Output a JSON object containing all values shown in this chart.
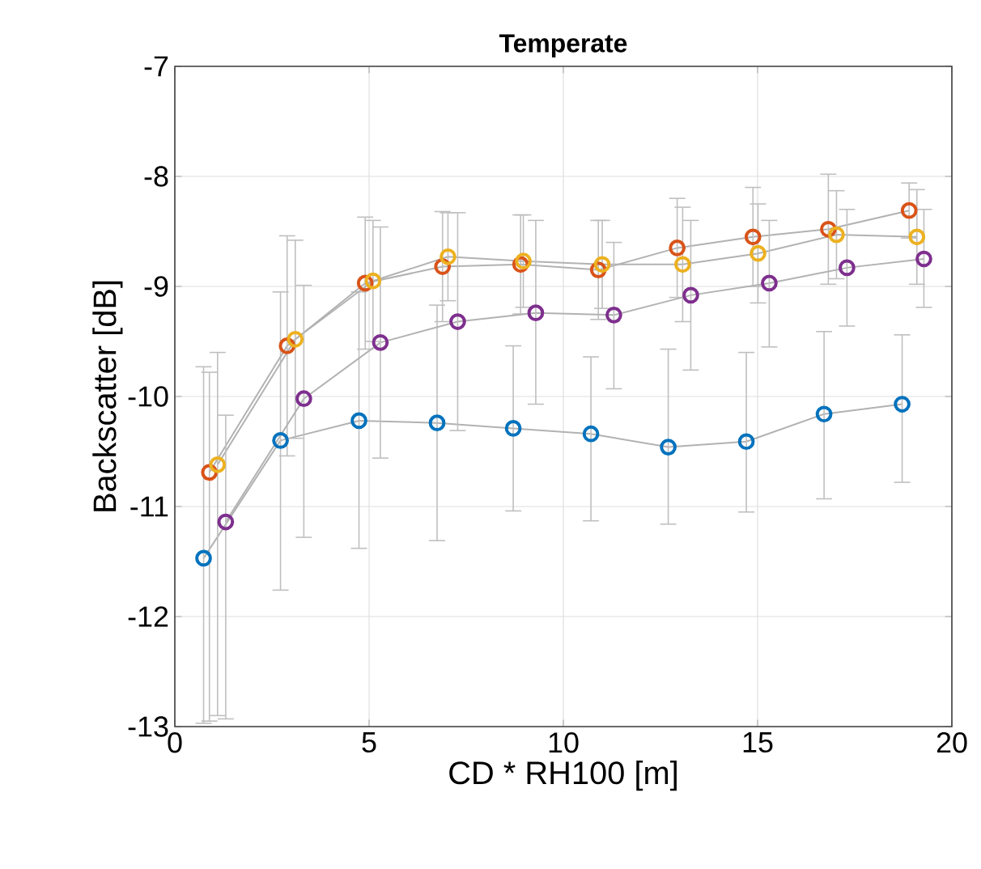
{
  "chart_data": {
    "type": "line",
    "title": "Temperate",
    "xlabel": "CD * RH100  [m]",
    "ylabel": "Backscatter  [dB]",
    "xlim": [
      0,
      20
    ],
    "ylim": [
      -13,
      -7
    ],
    "xticks": [
      0,
      5,
      10,
      15,
      20
    ],
    "yticks": [
      -13,
      -12,
      -11,
      -10,
      -9,
      -8,
      -7
    ],
    "grid": true,
    "marker": "circle",
    "line_style": "solid",
    "series": [
      {
        "color": "#0072bd",
        "x": [
          0.74,
          2.72,
          4.74,
          6.75,
          8.71,
          10.71,
          12.7,
          14.71,
          16.71,
          18.72
        ],
        "values": [
          -11.47,
          -10.4,
          -10.22,
          -10.24,
          -10.29,
          -10.34,
          -10.46,
          -10.41,
          -10.16,
          -10.07
        ],
        "errors": [
          [
            -12.97,
            -9.73
          ],
          [
            -11.76,
            -9.05
          ],
          [
            -11.38,
            -9.05
          ],
          [
            -11.31,
            -9.17
          ],
          [
            -11.04,
            -9.54
          ],
          [
            -11.13,
            -9.64
          ],
          [
            -11.16,
            -9.57
          ],
          [
            -11.05,
            -9.6
          ],
          [
            -10.93,
            -9.41
          ],
          [
            -10.78,
            -9.44
          ]
        ]
      },
      {
        "color": "#d95319",
        "x": [
          0.89,
          2.89,
          4.9,
          6.89,
          8.9,
          10.9,
          12.93,
          14.88,
          16.82,
          18.9
        ],
        "values": [
          -10.69,
          -9.54,
          -8.97,
          -8.82,
          -8.8,
          -8.85,
          -8.65,
          -8.55,
          -8.48,
          -8.31
        ],
        "errors": [
          [
            -12.95,
            -9.78
          ],
          1.0,
          0.6,
          0.5,
          0.45,
          0.45,
          0.45,
          0.45,
          0.5,
          0.25
        ]
      },
      {
        "color": "#edb120",
        "x": [
          1.1,
          3.1,
          5.1,
          7.03,
          8.97,
          11.0,
          13.07,
          15.01,
          17.03,
          19.1
        ],
        "values": [
          -10.62,
          -9.48,
          -8.95,
          -8.73,
          -8.77,
          -8.8,
          -8.8,
          -8.7,
          -8.53,
          -8.55
        ],
        "errors": [
          [
            -12.9,
            -9.6
          ],
          0.9,
          0.55,
          0.4,
          0.42,
          0.4,
          0.52,
          0.45,
          0.4,
          0.43
        ]
      },
      {
        "color": "#7e2f8e",
        "x": [
          1.31,
          3.32,
          5.29,
          7.28,
          9.29,
          11.3,
          13.28,
          15.3,
          17.3,
          19.28
        ],
        "values": [
          -11.14,
          -10.02,
          -9.51,
          -9.32,
          -9.24,
          -9.26,
          -9.08,
          -8.97,
          -8.83,
          -8.75
        ],
        "errors": [
          [
            -12.93,
            -10.17
          ],
          [
            -11.28,
            -8.99
          ],
          [
            -10.56,
            -8.46
          ],
          [
            -10.31,
            -8.33
          ],
          [
            -10.07,
            -8.4
          ],
          [
            -9.93,
            -8.6
          ],
          [
            -9.76,
            -8.4
          ],
          [
            -9.55,
            -8.4
          ],
          [
            -9.36,
            -8.3
          ],
          [
            -9.19,
            -8.3
          ]
        ]
      }
    ]
  }
}
